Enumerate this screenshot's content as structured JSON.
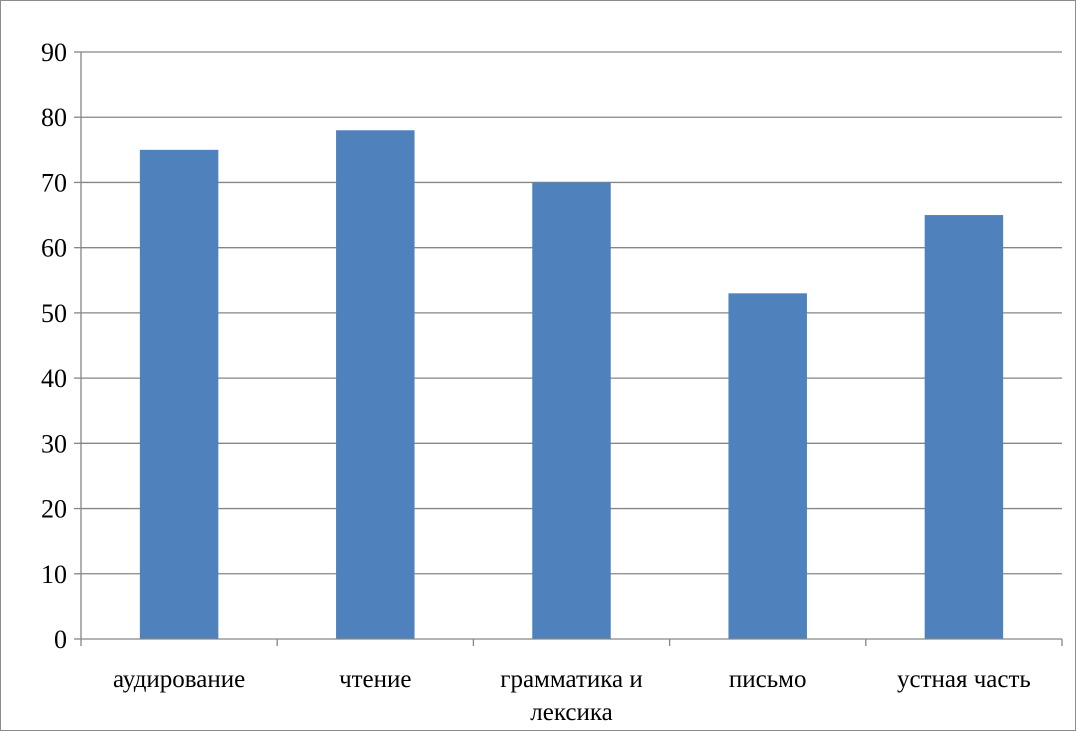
{
  "chart_data": {
    "type": "bar",
    "title": "",
    "xlabel": "",
    "ylabel": "",
    "categories": [
      [
        "аудирование"
      ],
      [
        "чтение"
      ],
      [
        "грамматика и",
        "лексика"
      ],
      [
        "письмо"
      ],
      [
        "устная часть"
      ]
    ],
    "values": [
      75,
      78,
      70,
      53,
      65
    ],
    "ylim": [
      0,
      90
    ],
    "yticks": [
      "0",
      "10",
      "20",
      "30",
      "40",
      "50",
      "60",
      "70",
      "80",
      "90"
    ],
    "grid": true,
    "legend": "none",
    "colors": {
      "bar": "#4f81bd",
      "grid": "#868686",
      "axis": "#868686",
      "text": "#000000"
    }
  }
}
